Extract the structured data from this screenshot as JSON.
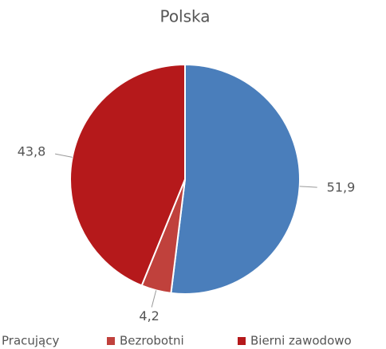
{
  "chart_data": {
    "type": "pie",
    "title": "Polska",
    "categories": [
      "Pracujący",
      "Bezrobotni",
      "Bierni zawodowo"
    ],
    "values": [
      51.9,
      4.2,
      43.8
    ],
    "value_labels": [
      "51,9",
      "4,2",
      "43,8"
    ],
    "colors": [
      "#4a7ebb",
      "#c0413c",
      "#b5191b"
    ],
    "legend": "bottom"
  }
}
